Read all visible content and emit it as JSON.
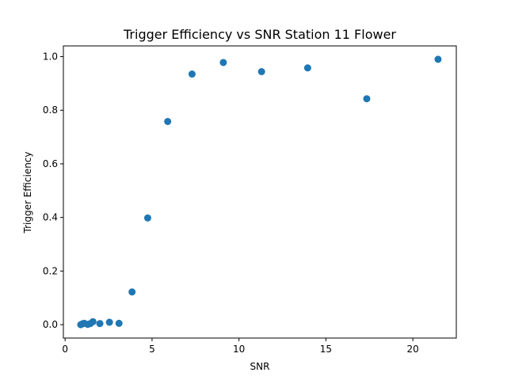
{
  "chart_data": {
    "type": "scatter",
    "title": "Trigger Efficiency vs SNR Station 11 Flower",
    "xlabel": "SNR",
    "ylabel": "Trigger Efficiency",
    "xlim": [
      -0.1,
      22.5
    ],
    "ylim": [
      -0.05,
      1.04
    ],
    "xticks": [
      0,
      5,
      10,
      15,
      20
    ],
    "xtick_labels": [
      "0",
      "5",
      "10",
      "15",
      "20"
    ],
    "yticks": [
      0.0,
      0.2,
      0.4,
      0.6,
      0.8,
      1.0
    ],
    "ytick_labels": [
      "0.0",
      "0.2",
      "0.4",
      "0.6",
      "0.8",
      "1.0"
    ],
    "grid": false,
    "marker_color": "#1f77b4",
    "series": [
      {
        "x": [
          0.9,
          1.0,
          1.1,
          1.3,
          1.45,
          1.6,
          2.0,
          2.55,
          3.1,
          3.85,
          4.75,
          5.9,
          7.3,
          9.1,
          11.3,
          13.95,
          17.35,
          21.45
        ],
        "y": [
          0.0,
          0.003,
          0.005,
          0.001,
          0.004,
          0.011,
          0.004,
          0.009,
          0.005,
          0.122,
          0.398,
          0.758,
          0.935,
          0.978,
          0.944,
          0.958,
          0.843,
          0.99
        ]
      }
    ]
  }
}
